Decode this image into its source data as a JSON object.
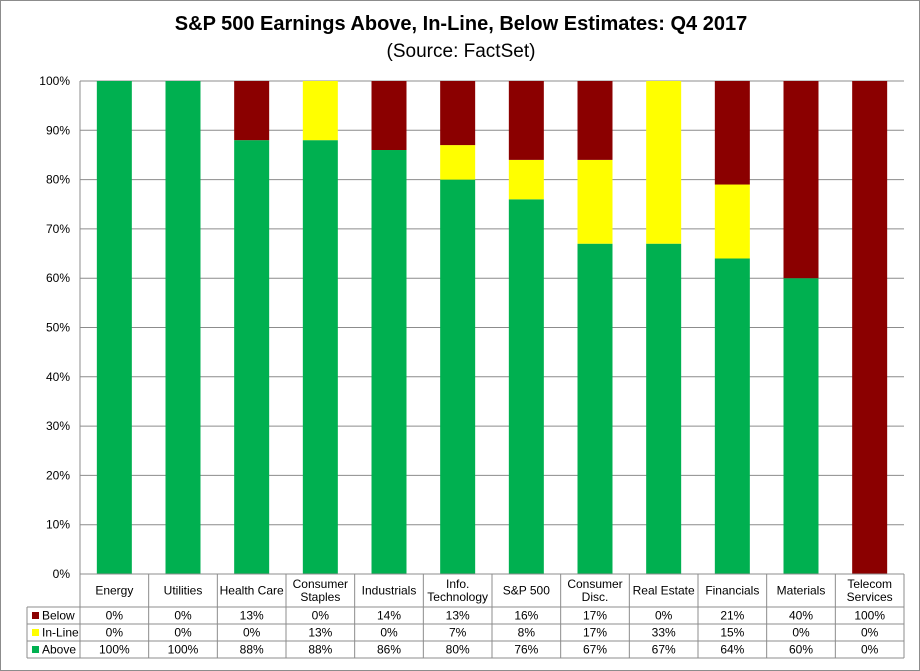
{
  "chart_data": {
    "type": "bar",
    "stacked": true,
    "title": "S&P 500 Earnings Above, In-Line, Below Estimates: Q4 2017",
    "subtitle": "(Source: FactSet)",
    "xlabel": "",
    "ylabel": "",
    "ylim": [
      0,
      100
    ],
    "yticks": [
      "0%",
      "10%",
      "20%",
      "30%",
      "40%",
      "50%",
      "60%",
      "70%",
      "80%",
      "90%",
      "100%"
    ],
    "grid": true,
    "categories": [
      [
        "Energy"
      ],
      [
        "Utilities"
      ],
      [
        "Health Care"
      ],
      [
        "Consumer",
        "Staples"
      ],
      [
        "Industrials"
      ],
      [
        "Info.",
        "Technology"
      ],
      [
        "S&P 500"
      ],
      [
        "Consumer",
        "Disc."
      ],
      [
        "Real Estate"
      ],
      [
        "Financials"
      ],
      [
        "Materials"
      ],
      [
        "Telecom",
        "Services"
      ]
    ],
    "series": [
      {
        "name": "Below",
        "color": "#8b0000",
        "values": [
          0,
          0,
          13,
          0,
          14,
          13,
          16,
          17,
          0,
          21,
          40,
          100
        ],
        "labels": [
          "0%",
          "0%",
          "13%",
          "0%",
          "14%",
          "13%",
          "16%",
          "17%",
          "0%",
          "21%",
          "40%",
          "100%"
        ]
      },
      {
        "name": "In-Line",
        "color": "#ffff00",
        "values": [
          0,
          0,
          0,
          13,
          0,
          7,
          8,
          17,
          33,
          15,
          0,
          0
        ],
        "labels": [
          "0%",
          "0%",
          "0%",
          "13%",
          "0%",
          "7%",
          "8%",
          "17%",
          "33%",
          "15%",
          "0%",
          "0%"
        ]
      },
      {
        "name": "Above",
        "color": "#00b050",
        "values": [
          100,
          100,
          88,
          88,
          86,
          80,
          76,
          67,
          67,
          64,
          60,
          0
        ],
        "labels": [
          "100%",
          "100%",
          "88%",
          "88%",
          "86%",
          "80%",
          "76%",
          "67%",
          "67%",
          "64%",
          "60%",
          "0%"
        ]
      }
    ],
    "legend": "data-table-left"
  }
}
